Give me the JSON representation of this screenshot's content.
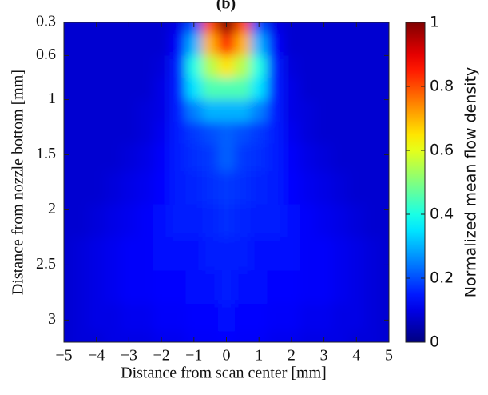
{
  "chart_data": {
    "type": "heatmap",
    "title": "(b)",
    "xlabel": "Distance from scan center [mm]",
    "ylabel": "Distance from nozzle bottom [mm]",
    "colorbar_label": "Normalized mean flow density",
    "colormap": "jet",
    "xlim": [
      -5,
      5
    ],
    "xticks": [
      {
        "value": -5,
        "label": "−5"
      },
      {
        "value": -4,
        "label": "−4"
      },
      {
        "value": -3,
        "label": "−3"
      },
      {
        "value": -2,
        "label": "−2"
      },
      {
        "value": -1,
        "label": "−1"
      },
      0,
      1,
      2,
      3,
      4,
      5
    ],
    "ylim": [
      0.3,
      3.2
    ],
    "y_inverted": true,
    "yticks": [
      0.3,
      0.6,
      1,
      1.5,
      2,
      2.5,
      3
    ],
    "zlim": [
      0,
      1
    ],
    "zticks": [
      0,
      0.2,
      0.4,
      0.6,
      0.8,
      1
    ],
    "x": [
      -5,
      -4.5,
      -4,
      -3.5,
      -3,
      -2.5,
      -2,
      -1.5,
      -1,
      -0.5,
      0,
      0.5,
      1,
      1.5,
      2,
      2.5,
      3,
      3.5,
      4,
      4.5,
      5
    ],
    "y": [
      0.3,
      0.5,
      0.7,
      0.9,
      1.1,
      1.3,
      1.5,
      1.8,
      2.1,
      2.4,
      2.7,
      3.0,
      3.2
    ],
    "z": [
      [
        0.08,
        0.08,
        0.08,
        0.08,
        0.08,
        0.08,
        0.08,
        0.1,
        0.2,
        0.8,
        1.0,
        0.8,
        0.2,
        0.1,
        0.08,
        0.08,
        0.08,
        0.08,
        0.08,
        0.08,
        0.08
      ],
      [
        0.08,
        0.08,
        0.08,
        0.08,
        0.08,
        0.08,
        0.08,
        0.12,
        0.3,
        0.7,
        0.85,
        0.7,
        0.3,
        0.12,
        0.08,
        0.08,
        0.08,
        0.08,
        0.08,
        0.08,
        0.08
      ],
      [
        0.08,
        0.08,
        0.08,
        0.08,
        0.08,
        0.08,
        0.09,
        0.15,
        0.4,
        0.55,
        0.65,
        0.55,
        0.4,
        0.15,
        0.09,
        0.08,
        0.08,
        0.08,
        0.08,
        0.08,
        0.08
      ],
      [
        0.08,
        0.08,
        0.08,
        0.08,
        0.08,
        0.08,
        0.1,
        0.15,
        0.35,
        0.45,
        0.45,
        0.45,
        0.35,
        0.15,
        0.1,
        0.08,
        0.08,
        0.08,
        0.08,
        0.08,
        0.08
      ],
      [
        0.08,
        0.08,
        0.08,
        0.08,
        0.08,
        0.09,
        0.1,
        0.15,
        0.25,
        0.3,
        0.3,
        0.3,
        0.25,
        0.15,
        0.1,
        0.09,
        0.08,
        0.08,
        0.08,
        0.08,
        0.08
      ],
      [
        0.08,
        0.08,
        0.08,
        0.08,
        0.08,
        0.09,
        0.11,
        0.15,
        0.18,
        0.2,
        0.22,
        0.2,
        0.18,
        0.15,
        0.11,
        0.09,
        0.08,
        0.08,
        0.08,
        0.08,
        0.08
      ],
      [
        0.08,
        0.08,
        0.08,
        0.08,
        0.09,
        0.1,
        0.12,
        0.15,
        0.17,
        0.18,
        0.22,
        0.18,
        0.17,
        0.15,
        0.12,
        0.1,
        0.09,
        0.08,
        0.08,
        0.08,
        0.08
      ],
      [
        0.08,
        0.08,
        0.08,
        0.09,
        0.1,
        0.11,
        0.13,
        0.15,
        0.16,
        0.17,
        0.18,
        0.17,
        0.16,
        0.15,
        0.13,
        0.11,
        0.1,
        0.09,
        0.08,
        0.08,
        0.08
      ],
      [
        0.08,
        0.08,
        0.09,
        0.1,
        0.11,
        0.12,
        0.14,
        0.15,
        0.15,
        0.16,
        0.17,
        0.16,
        0.15,
        0.15,
        0.14,
        0.12,
        0.11,
        0.1,
        0.09,
        0.08,
        0.08
      ],
      [
        0.08,
        0.09,
        0.1,
        0.11,
        0.12,
        0.12,
        0.14,
        0.14,
        0.14,
        0.15,
        0.15,
        0.15,
        0.14,
        0.14,
        0.14,
        0.12,
        0.12,
        0.11,
        0.1,
        0.09,
        0.08
      ],
      [
        0.08,
        0.09,
        0.1,
        0.11,
        0.12,
        0.12,
        0.13,
        0.13,
        0.14,
        0.14,
        0.15,
        0.14,
        0.14,
        0.13,
        0.13,
        0.12,
        0.12,
        0.11,
        0.1,
        0.09,
        0.08
      ],
      [
        0.08,
        0.09,
        0.1,
        0.1,
        0.11,
        0.11,
        0.12,
        0.12,
        0.13,
        0.13,
        0.14,
        0.13,
        0.13,
        0.12,
        0.12,
        0.11,
        0.11,
        0.1,
        0.1,
        0.09,
        0.08
      ],
      [
        0.08,
        0.09,
        0.09,
        0.1,
        0.1,
        0.1,
        0.11,
        0.11,
        0.12,
        0.12,
        0.13,
        0.12,
        0.12,
        0.11,
        0.11,
        0.1,
        0.1,
        0.1,
        0.09,
        0.09,
        0.08
      ]
    ]
  }
}
